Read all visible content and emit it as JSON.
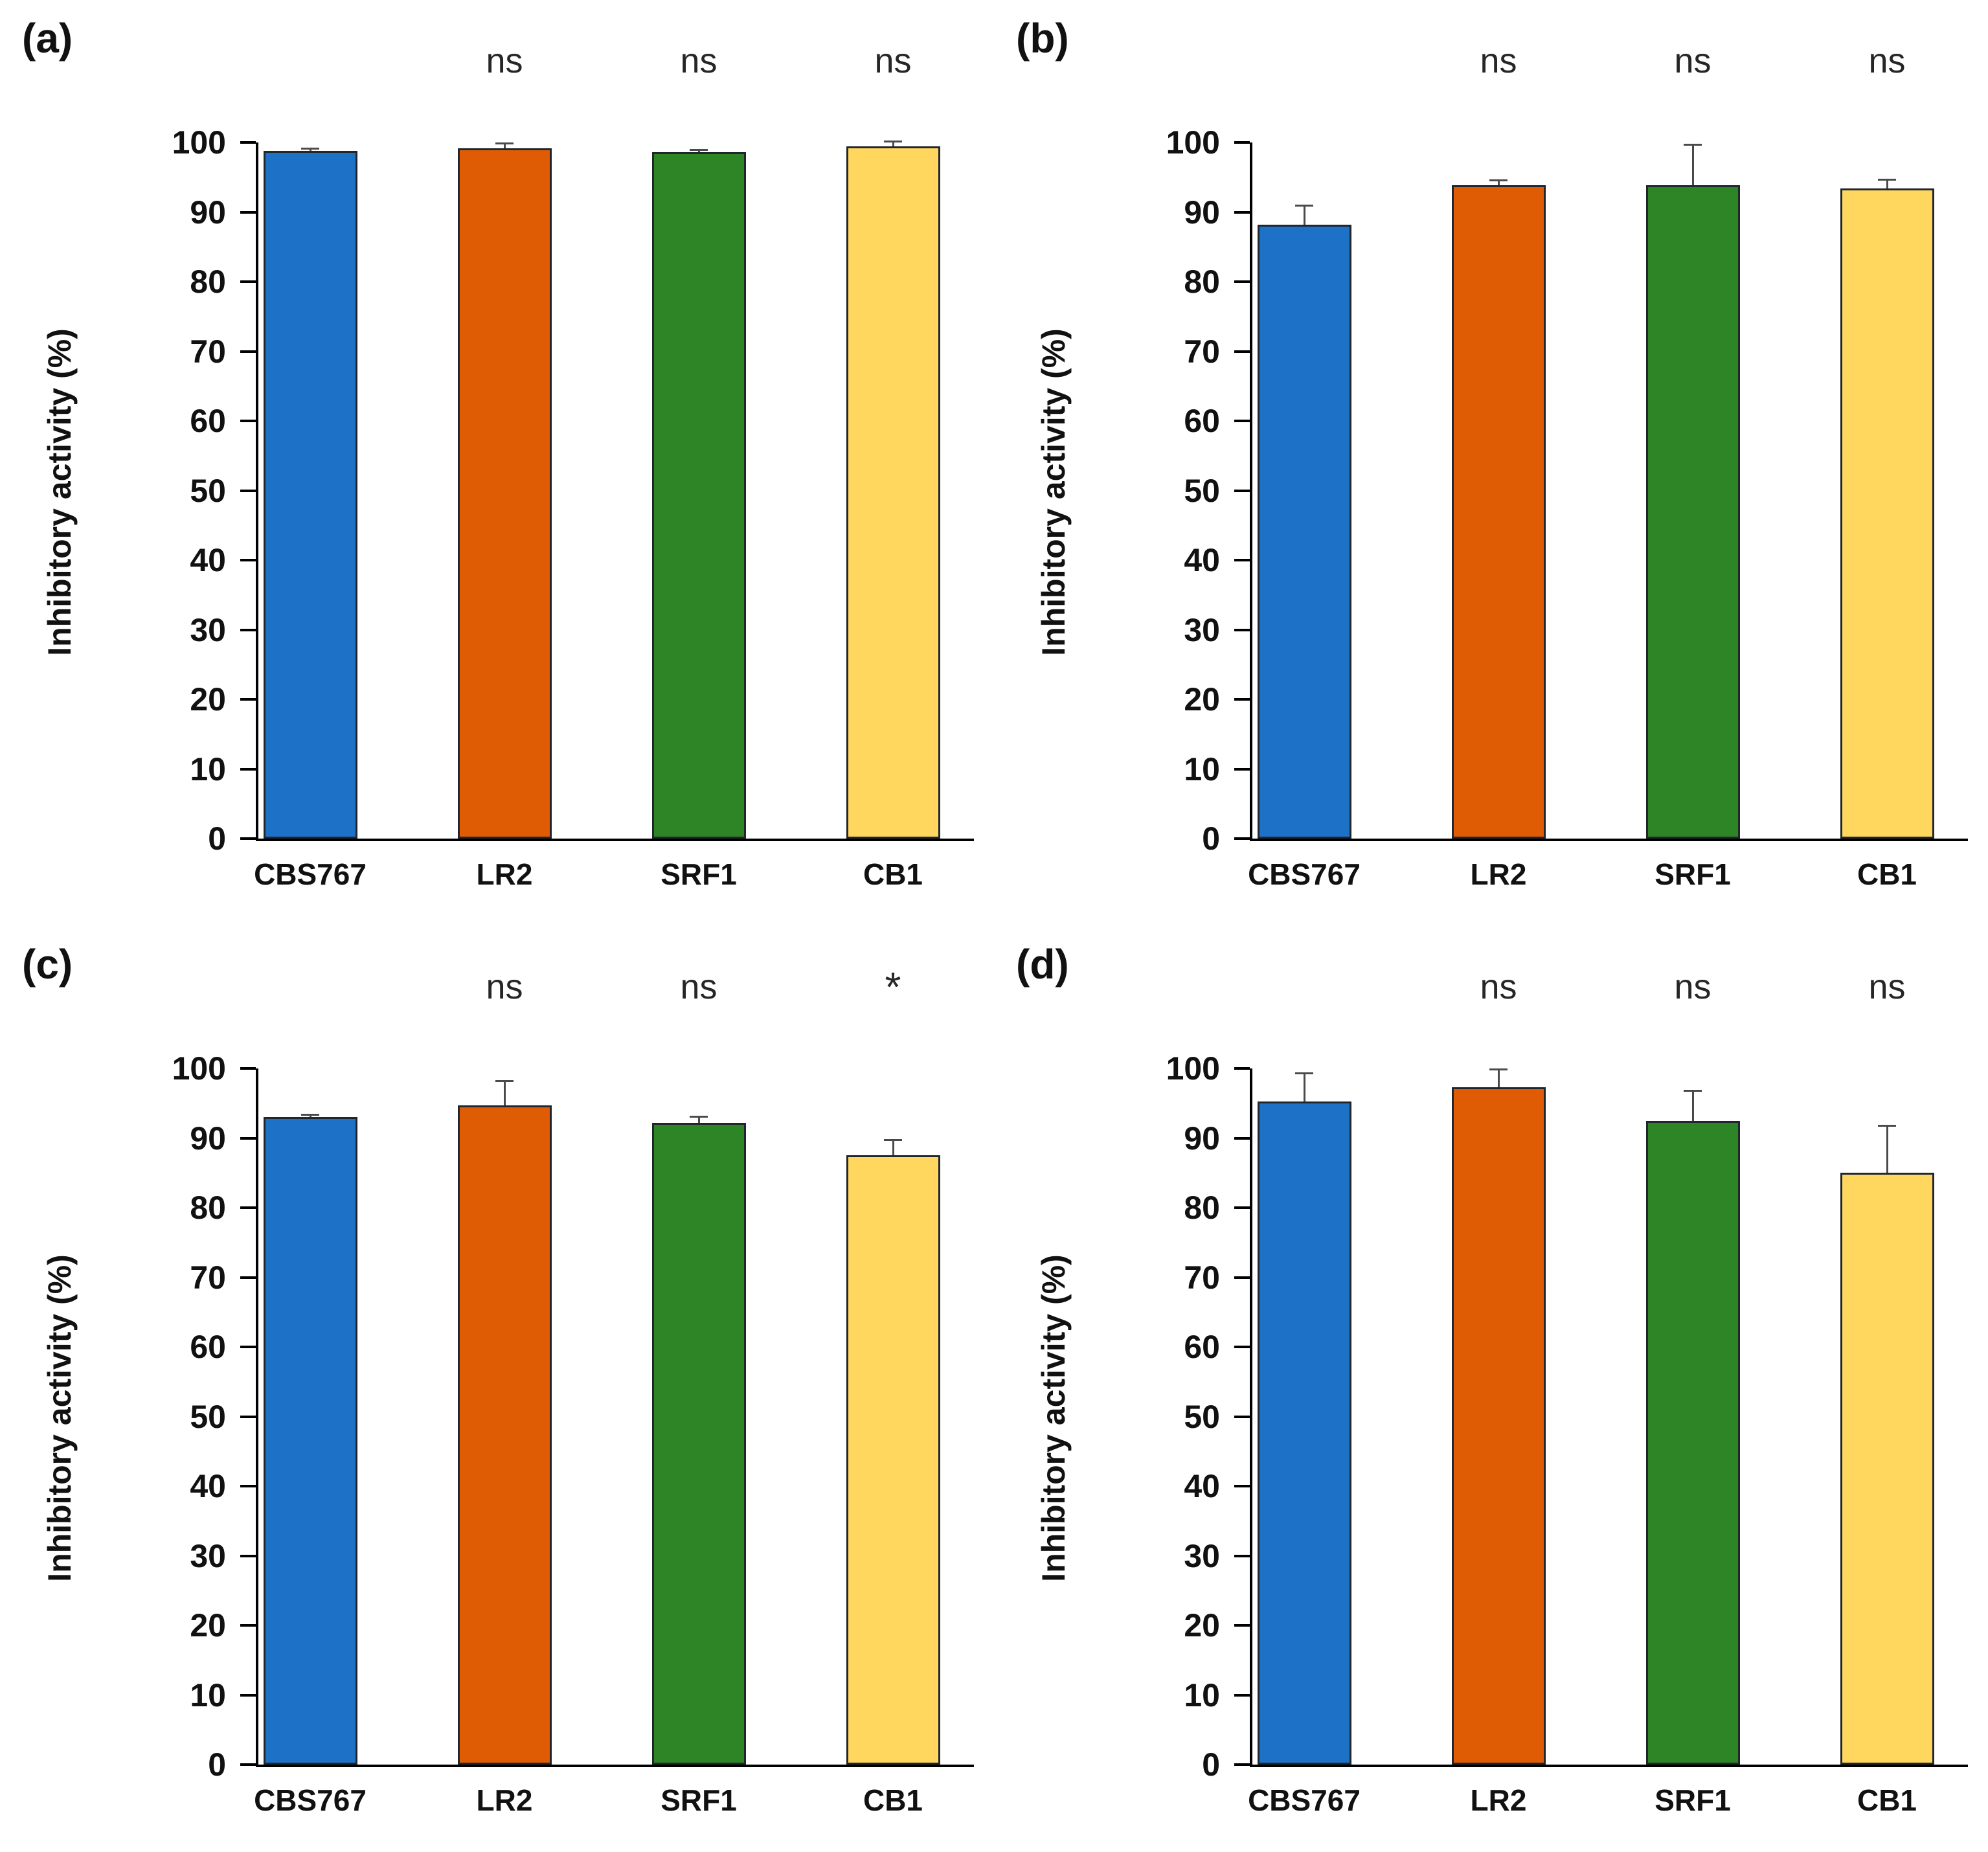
{
  "chart_data": [
    {
      "type": "bar",
      "panel_label": "(a)",
      "title": "",
      "xlabel": "",
      "ylabel": "Inhibitory activity (%)",
      "categories": [
        "CBS767",
        "LR2",
        "SRF1",
        "CB1"
      ],
      "values": [
        98.8,
        99.2,
        98.6,
        99.4
      ],
      "errors_plus": [
        0.3,
        0.6,
        0.3,
        0.7
      ],
      "annotations": [
        "",
        "ns",
        "ns",
        "ns"
      ],
      "ylim": [
        0,
        100
      ],
      "ytick_step": 10,
      "bar_colors": [
        "#1d72c8",
        "#e05c04",
        "#2e8525",
        "#ffd75f"
      ],
      "grid": false,
      "legend": false
    },
    {
      "type": "bar",
      "panel_label": "(b)",
      "title": "",
      "xlabel": "",
      "ylabel": "Inhibitory activity (%)",
      "categories": [
        "CBS767",
        "LR2",
        "SRF1",
        "CB1"
      ],
      "values": [
        88.2,
        93.9,
        93.9,
        93.4
      ],
      "errors_plus": [
        2.7,
        0.6,
        5.7,
        1.2
      ],
      "annotations": [
        "",
        "ns",
        "ns",
        "ns"
      ],
      "ylim": [
        0,
        100
      ],
      "ytick_step": 10,
      "bar_colors": [
        "#1d72c8",
        "#e05c04",
        "#2e8525",
        "#ffd75f"
      ],
      "grid": false,
      "legend": false
    },
    {
      "type": "bar",
      "panel_label": "(c)",
      "title": "",
      "xlabel": "",
      "ylabel": "Inhibitory activity (%)",
      "categories": [
        "CBS767",
        "LR2",
        "SRF1",
        "CB1"
      ],
      "values": [
        93.0,
        94.7,
        92.2,
        87.5
      ],
      "errors_plus": [
        0.3,
        3.4,
        0.8,
        2.2
      ],
      "annotations": [
        "",
        "ns",
        "ns",
        "*"
      ],
      "ylim": [
        0,
        100
      ],
      "ytick_step": 10,
      "bar_colors": [
        "#1d72c8",
        "#e05c04",
        "#2e8525",
        "#ffd75f"
      ],
      "grid": false,
      "legend": false
    },
    {
      "type": "bar",
      "panel_label": "(d)",
      "title": "",
      "xlabel": "",
      "ylabel": "Inhibitory activity (%)",
      "categories": [
        "CBS767",
        "LR2",
        "SRF1",
        "CB1"
      ],
      "values": [
        95.3,
        97.3,
        92.5,
        85.0
      ],
      "errors_plus": [
        4.0,
        2.5,
        4.2,
        6.7
      ],
      "annotations": [
        "",
        "ns",
        "ns",
        "ns"
      ],
      "ylim": [
        0,
        100
      ],
      "ytick_step": 10,
      "bar_colors": [
        "#1d72c8",
        "#e05c04",
        "#2e8525",
        "#ffd75f"
      ],
      "grid": false,
      "legend": false
    }
  ],
  "figure": {
    "background": "#ffffff",
    "axis_color": "#000000",
    "error_bar_color": "#4a4a4a",
    "significance_labels": [
      "ns",
      "*"
    ]
  }
}
